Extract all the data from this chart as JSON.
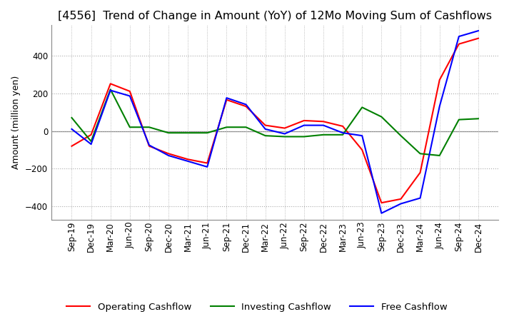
{
  "title": "[4556]  Trend of Change in Amount (YoY) of 12Mo Moving Sum of Cashflows",
  "ylabel": "Amount (million yen)",
  "title_fontsize": 11.5,
  "label_fontsize": 9,
  "tick_fontsize": 8.5,
  "legend_fontsize": 9.5,
  "x_labels": [
    "Sep-19",
    "Dec-19",
    "Mar-20",
    "Jun-20",
    "Sep-20",
    "Dec-20",
    "Mar-21",
    "Jun-21",
    "Sep-21",
    "Dec-21",
    "Mar-22",
    "Jun-22",
    "Sep-22",
    "Dec-22",
    "Mar-23",
    "Jun-23",
    "Sep-23",
    "Dec-23",
    "Mar-24",
    "Jun-24",
    "Sep-24",
    "Dec-24"
  ],
  "operating": [
    -80,
    -20,
    250,
    210,
    -80,
    -120,
    -150,
    -170,
    165,
    130,
    30,
    15,
    55,
    50,
    25,
    -100,
    -380,
    -360,
    -220,
    270,
    460,
    490
  ],
  "investing": [
    70,
    -55,
    220,
    20,
    20,
    -10,
    -10,
    -10,
    20,
    20,
    -25,
    -30,
    -30,
    -20,
    -20,
    125,
    75,
    -25,
    -120,
    -130,
    60,
    65
  ],
  "free": [
    10,
    -70,
    215,
    185,
    -75,
    -130,
    -160,
    -190,
    175,
    140,
    10,
    -15,
    30,
    30,
    -10,
    -25,
    -435,
    -385,
    -355,
    130,
    500,
    530
  ],
  "ylim": [
    -470,
    560
  ],
  "yticks": [
    -400,
    -200,
    0,
    200,
    400
  ],
  "operating_color": "#ff0000",
  "investing_color": "#008000",
  "free_color": "#0000ff",
  "line_width": 1.5,
  "background_color": "#ffffff",
  "grid_color": "#aaaaaa",
  "zero_line_color": "#888888"
}
